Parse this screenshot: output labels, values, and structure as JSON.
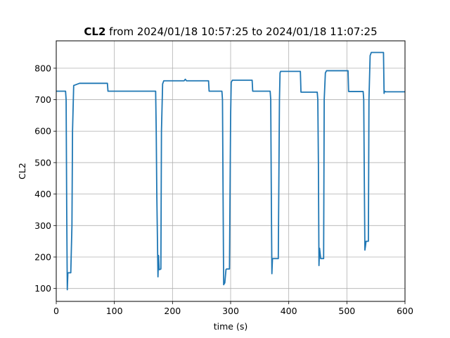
{
  "chart_data": {
    "type": "line",
    "title_bold": "CL2",
    "title_rest": " from 2024/01/18 10:57:25 to 2024/01/18 11:07:25",
    "xlabel": "time (s)",
    "ylabel": "CL2",
    "xlim": [
      0,
      600
    ],
    "ylim": [
      59,
      887
    ],
    "xticks": [
      0,
      100,
      200,
      300,
      400,
      500,
      600
    ],
    "yticks": [
      100,
      200,
      300,
      400,
      500,
      600,
      700,
      800
    ],
    "grid": true,
    "line_color": "#1f77b4",
    "series": [
      {
        "x": [
          0,
          16,
          17,
          18,
          19,
          20,
          24,
          25,
          27,
          28,
          30,
          40,
          88,
          89,
          100,
          170,
          171,
          172,
          173,
          175,
          176,
          177,
          178,
          180,
          181,
          183,
          185,
          190,
          220,
          222,
          224,
          230,
          262,
          263,
          270,
          285,
          286,
          287,
          288,
          290,
          292,
          293,
          298,
          300,
          301,
          303,
          305,
          310,
          330,
          337,
          338,
          345,
          368,
          369,
          370,
          371,
          372,
          380,
          382,
          384,
          385,
          386,
          390,
          420,
          421,
          423,
          425,
          440,
          449,
          450,
          451,
          452,
          453,
          455,
          456,
          460,
          461,
          463,
          465,
          470,
          500,
          502,
          503,
          510,
          528,
          529,
          530,
          531,
          532,
          533,
          535,
          537,
          538,
          540,
          542,
          543,
          545,
          550,
          560,
          563,
          564,
          565,
          567,
          570,
          600
        ],
        "y": [
          727,
          727,
          700,
          350,
          96,
          150,
          150,
          150,
          300,
          600,
          745,
          752,
          752,
          727,
          727,
          727,
          727,
          600,
          400,
          137,
          205,
          160,
          160,
          162,
          600,
          750,
          760,
          760,
          760,
          765,
          760,
          760,
          760,
          727,
          727,
          727,
          700,
          400,
          112,
          118,
          160,
          162,
          162,
          650,
          755,
          762,
          762,
          762,
          762,
          762,
          727,
          727,
          727,
          700,
          400,
          147,
          195,
          195,
          195,
          700,
          785,
          790,
          790,
          790,
          724,
          724,
          724,
          724,
          724,
          700,
          500,
          173,
          228,
          195,
          195,
          195,
          700,
          785,
          792,
          792,
          792,
          792,
          726,
          726,
          726,
          700,
          450,
          222,
          235,
          250,
          250,
          250,
          700,
          840,
          850,
          850,
          850,
          850,
          850,
          850,
          720,
          727,
          725,
          725,
          725
        ]
      }
    ]
  }
}
